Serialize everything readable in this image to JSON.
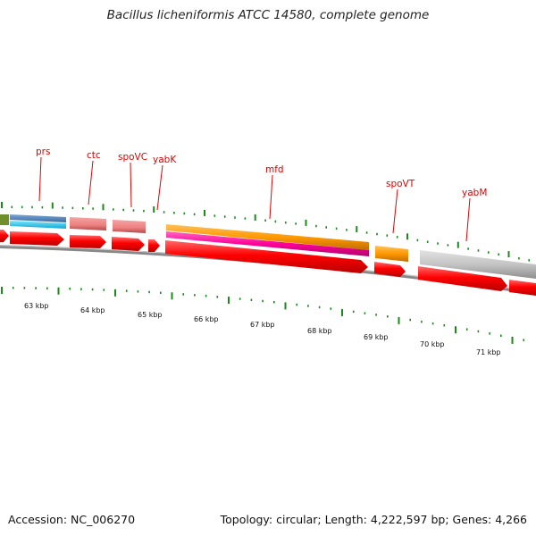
{
  "title": "Bacillus licheniformis ATCC 14580, complete genome",
  "accession_text": "Accession: NC_006270",
  "summary_text": "Topology: circular; Length: 4,222,597 bp; Genes: 4,266",
  "gene_labels": [
    {
      "name": "prs",
      "color": "#e00000"
    },
    {
      "name": "ctc",
      "color": "#e00000"
    },
    {
      "name": "spoVC",
      "color": "#e00000"
    },
    {
      "name": "yabK",
      "color": "#e00000"
    },
    {
      "name": "mfd",
      "color": "#e00000"
    },
    {
      "name": "spoVT",
      "color": "#e00000"
    },
    {
      "name": "yabM",
      "color": "#e00000"
    }
  ],
  "kbp_labels": [
    "63 kbp",
    "64 kbp",
    "65 kbp",
    "66 kbp",
    "67 kbp",
    "68 kbp",
    "69 kbp",
    "70 kbp",
    "71 kbp"
  ],
  "colors": {
    "cds_red": "#ff0000",
    "backbone": "#777777",
    "tick_green": "#1a8a1a",
    "steelblue_feature": "#4a7fb8",
    "cyan_feature": "#1ec8f0",
    "olive_feature": "#6f8f2a",
    "pink_feature": "#f08080",
    "orange_feature": "#ff9900",
    "magenta_feature": "#ff0099",
    "gray_feature": "#c0c0c0"
  }
}
